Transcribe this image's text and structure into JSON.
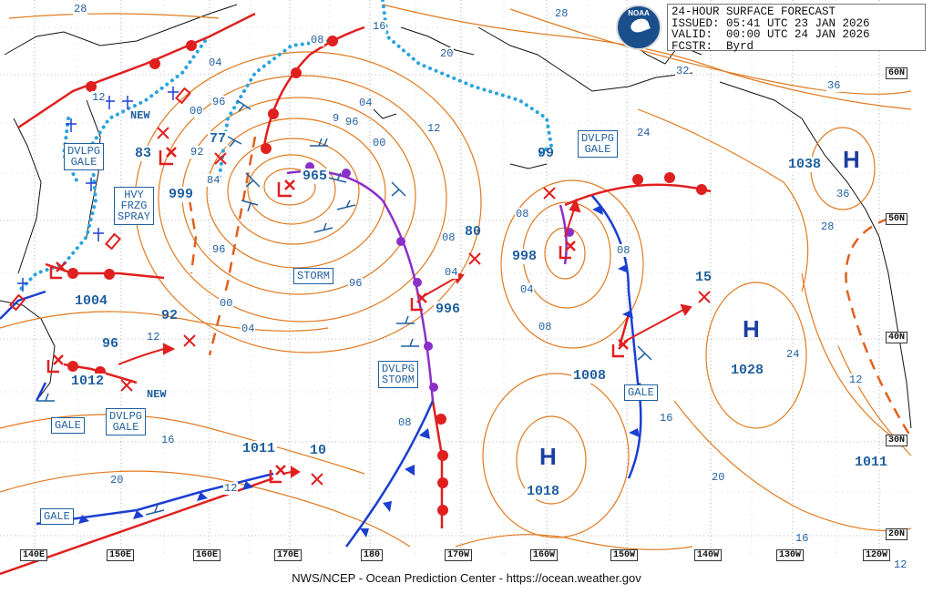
{
  "header": {
    "line1": "24-HOUR SURFACE FORECAST",
    "line2": "ISSUED: 05:41 UTC 23 JAN 2026",
    "line3": "VALID:  00:00 UTC 24 JAN 2026",
    "line4": "FCSTR:  Byrd",
    "logo_text": "NOAA"
  },
  "footer": "NWS/NCEP - Ocean Prediction Center - https://ocean.weather.gov",
  "latitude_labels": [
    "60N",
    "50N",
    "40N",
    "30N",
    "20N"
  ],
  "longitude_labels": [
    "140E",
    "150E",
    "160E",
    "170E",
    "180",
    "170W",
    "160W",
    "150W",
    "140W",
    "130W",
    "120W"
  ],
  "warning_labels": [
    "DVLPG\nGALE",
    "HVY\nFRZG\nSPRAY",
    "STORM",
    "DVLPG\nSTORM",
    "GALE",
    "DVLPG\nGALE",
    "GALE",
    "GALE",
    "DVLPG\nGALE"
  ],
  "pressure_centers": {
    "low_965": "965",
    "low_983": "83",
    "low_999": "999",
    "low_977": "77",
    "low_1004": "1004",
    "low_1012": "1012",
    "low_996": "996",
    "low_998": "998",
    "low_1008": "1008",
    "low_1011_mid": "1011",
    "high_1038": "1038",
    "high_1028": "1028",
    "high_1018": "1018",
    "high_1011_east": "1011"
  },
  "forecast_positions": [
    "92",
    "96",
    "80",
    "15",
    "10",
    "99",
    "92",
    "84"
  ],
  "new_labels": [
    "NEW",
    "NEW"
  ],
  "high_symbol": "H",
  "isobar_values": [
    "28",
    "04",
    "00",
    "96",
    "92",
    "12",
    "20",
    "08",
    "16",
    "24",
    "32",
    "36",
    "28",
    "04",
    "08",
    "12",
    "16",
    "20",
    "24",
    "04",
    "08",
    "00",
    "96",
    "12",
    "28",
    "16",
    "20",
    "12",
    "04",
    "08",
    "12",
    "16",
    "20",
    "9"
  ],
  "colors": {
    "isobar": "#e07a1f",
    "cold_front": "#1a3fd1",
    "warm_front": "#e01f1f",
    "occluded_front": "#8b2fc9",
    "ice_edge": "#29a3e0",
    "grid": "#555555",
    "label_text": "#1f5f9f",
    "land": "#111111"
  }
}
